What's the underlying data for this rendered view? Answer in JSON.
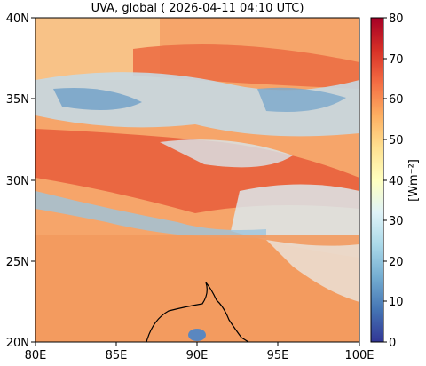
{
  "title": "UVA, global ( 2026-04-11 04:10 UTC)",
  "map": {
    "lon_range": [
      80,
      100
    ],
    "lat_range": [
      20,
      40
    ],
    "x_ticks": [
      "80E",
      "85E",
      "90E",
      "95E",
      "100E"
    ],
    "y_ticks": [
      "20N",
      "25N",
      "30N",
      "35N",
      "40N"
    ],
    "features": [
      "coastline"
    ]
  },
  "colorbar": {
    "label": "[Wm⁻²]",
    "ticks": [
      "0",
      "10",
      "20",
      "30",
      "40",
      "50",
      "60",
      "70",
      "80"
    ],
    "range": [
      0,
      80
    ],
    "colormap": "RdYlBu_r",
    "colors": [
      "#313695",
      "#4575b4",
      "#74add1",
      "#abd9e9",
      "#e0f3f8",
      "#ffffbf",
      "#fee090",
      "#fdae61",
      "#f46d43",
      "#d73027",
      "#a50026"
    ]
  }
}
